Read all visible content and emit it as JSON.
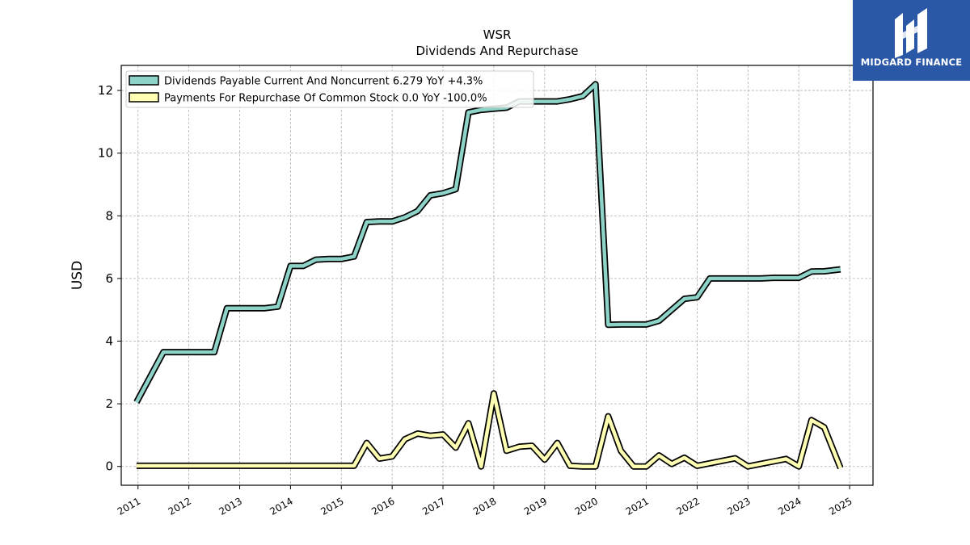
{
  "brand": {
    "name": "MIDGARD FINANCE",
    "color": "#2a58a6"
  },
  "chart_data": {
    "type": "line",
    "title": "WSR",
    "subtitle": "Dividends And Repurchase",
    "xlabel": "",
    "ylabel": "USD",
    "xlim": [
      2010.67,
      2025.46
    ],
    "ylim": [
      -0.6,
      12.8
    ],
    "grid": true,
    "legend_position": "top-left",
    "x_ticks": [
      "2011",
      "2012",
      "2013",
      "2014",
      "2015",
      "2016",
      "2017",
      "2018",
      "2019",
      "2020",
      "2021",
      "2022",
      "2023",
      "2024",
      "2025"
    ],
    "y_ticks": [
      "0",
      "2",
      "4",
      "6",
      "8",
      "10",
      "12"
    ],
    "y_tick_values": [
      0,
      2,
      4,
      6,
      8,
      10,
      12
    ],
    "series": [
      {
        "name": "Dividends Payable Current And Noncurrent",
        "legend_label": "Dividends Payable Current And Noncurrent  6.279 YoY +4.3%",
        "color": "#8dd3c7",
        "x": [
          2010.97,
          2011.5,
          2011.75,
          2012.0,
          2012.25,
          2012.5,
          2012.75,
          2013.0,
          2013.25,
          2013.5,
          2013.75,
          2014.0,
          2014.25,
          2014.5,
          2014.75,
          2015.0,
          2015.25,
          2015.5,
          2015.75,
          2016.0,
          2016.25,
          2016.5,
          2016.75,
          2017.0,
          2017.25,
          2017.5,
          2017.75,
          2018.0,
          2018.25,
          2018.5,
          2018.75,
          2019.0,
          2019.25,
          2019.5,
          2019.75,
          2020.0,
          2020.25,
          2020.5,
          2020.75,
          2021.0,
          2021.25,
          2021.5,
          2021.75,
          2022.0,
          2022.25,
          2022.5,
          2022.75,
          2023.0,
          2023.25,
          2023.5,
          2023.75,
          2024.0,
          2024.25,
          2024.5,
          2024.82
        ],
        "values": [
          2.05,
          3.65,
          3.65,
          3.65,
          3.65,
          3.65,
          5.05,
          5.05,
          5.05,
          5.05,
          5.1,
          6.4,
          6.4,
          6.6,
          6.62,
          6.62,
          6.7,
          7.8,
          7.82,
          7.82,
          7.95,
          8.15,
          8.65,
          8.72,
          8.85,
          11.3,
          11.38,
          11.42,
          11.45,
          11.65,
          11.65,
          11.65,
          11.65,
          11.72,
          11.82,
          12.2,
          4.52,
          4.53,
          4.53,
          4.53,
          4.65,
          5.0,
          5.35,
          5.4,
          6.0,
          6.0,
          6.0,
          6.0,
          6.0,
          6.02,
          6.02,
          6.02,
          6.22,
          6.23,
          6.29
        ]
      },
      {
        "name": "Payments For Repurchase Of Common Stock",
        "legend_label": "Payments For Repurchase Of Common Stock  0.0 YoY -100.0%",
        "color": "#ffffb3",
        "x": [
          2010.97,
          2011.25,
          2011.5,
          2011.75,
          2012.0,
          2012.25,
          2012.5,
          2012.75,
          2013.0,
          2013.25,
          2013.5,
          2013.75,
          2014.0,
          2014.25,
          2014.5,
          2014.75,
          2015.0,
          2015.25,
          2015.5,
          2015.75,
          2016.0,
          2016.25,
          2016.5,
          2016.75,
          2017.0,
          2017.25,
          2017.5,
          2017.75,
          2018.0,
          2018.25,
          2018.5,
          2018.75,
          2019.0,
          2019.25,
          2019.5,
          2019.75,
          2020.0,
          2020.25,
          2020.5,
          2020.75,
          2021.0,
          2021.25,
          2021.5,
          2021.75,
          2022.0,
          2022.25,
          2022.5,
          2022.75,
          2023.0,
          2023.25,
          2023.5,
          2023.75,
          2024.0,
          2024.25,
          2024.5,
          2024.82
        ],
        "values": [
          0.02,
          0.02,
          0.02,
          0.02,
          0.02,
          0.02,
          0.02,
          0.02,
          0.02,
          0.02,
          0.02,
          0.02,
          0.02,
          0.02,
          0.02,
          0.02,
          0.02,
          0.02,
          0.75,
          0.25,
          0.32,
          0.87,
          1.05,
          0.98,
          1.02,
          0.6,
          1.38,
          0.0,
          2.33,
          0.5,
          0.63,
          0.66,
          0.22,
          0.75,
          0.02,
          0.0,
          0.0,
          1.6,
          0.5,
          0.0,
          0.0,
          0.35,
          0.08,
          0.28,
          0.02,
          0.1,
          0.18,
          0.26,
          0.0,
          0.08,
          0.16,
          0.24,
          0.0,
          1.48,
          1.25,
          -0.05
        ]
      }
    ]
  }
}
